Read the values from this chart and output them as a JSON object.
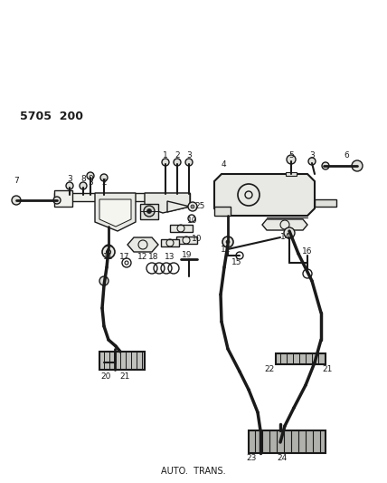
{
  "bg_color": "#ffffff",
  "line_color": "#1a1a1a",
  "text_color": "#1a1a1a",
  "part_number_label": "5705  200",
  "subtitle": "AUTO.  TRANS.",
  "fig_width": 4.28,
  "fig_height": 5.33,
  "dpi": 100
}
